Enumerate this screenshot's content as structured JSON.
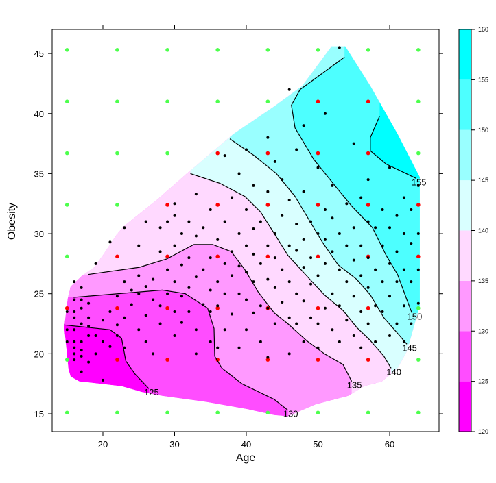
{
  "chart_data": {
    "type": "heatmap",
    "subtype": "filled-contour (levelplot) with scatter overlay",
    "title": "",
    "xlabel": "Age",
    "ylabel": "Obesity",
    "xlim": [
      12.9,
      66.9
    ],
    "ylim": [
      13.5,
      47.0
    ],
    "xticks": [
      20,
      30,
      40,
      50,
      60
    ],
    "yticks": [
      15,
      20,
      25,
      30,
      35,
      40,
      45
    ],
    "colorbar": {
      "levels": [
        120,
        125,
        130,
        135,
        140,
        145,
        150,
        155,
        160
      ],
      "tick_labels": [
        "120",
        "125",
        "130",
        "135",
        "140",
        "145",
        "150",
        "155",
        "160"
      ],
      "colors": [
        "#ff00ff",
        "#ff4dff",
        "#ff99ff",
        "#ffd9ff",
        "#d9ffff",
        "#99ffff",
        "#4dffff",
        "#00ffff"
      ]
    },
    "region_hull": [
      [
        51.9,
        45.6
      ],
      [
        53.8,
        45.6
      ],
      [
        57.3,
        42.3
      ],
      [
        61.1,
        38.3
      ],
      [
        64.2,
        34.7
      ],
      [
        64.2,
        24.0
      ],
      [
        63.3,
        22.1
      ],
      [
        62.4,
        20.2
      ],
      [
        61.1,
        18.8
      ],
      [
        58.9,
        17.7
      ],
      [
        56.4,
        17.3
      ],
      [
        54.2,
        16.5
      ],
      [
        49.7,
        15.8
      ],
      [
        45.8,
        14.8
      ],
      [
        43.9,
        14.9
      ],
      [
        40.1,
        15.4
      ],
      [
        34.4,
        16.0
      ],
      [
        28.3,
        16.5
      ],
      [
        25.5,
        16.8
      ],
      [
        22.6,
        17.3
      ],
      [
        19.7,
        17.5
      ],
      [
        16.7,
        17.7
      ],
      [
        15.5,
        18.1
      ],
      [
        15.2,
        18.7
      ],
      [
        14.6,
        22.2
      ],
      [
        15.1,
        24.6
      ],
      [
        15.5,
        25.6
      ],
      [
        17.1,
        26.5
      ],
      [
        18.8,
        27.2
      ],
      [
        20.0,
        28.2
      ],
      [
        21.9,
        29.9
      ],
      [
        22.9,
        30.6
      ],
      [
        27.7,
        32.9
      ],
      [
        31.5,
        34.9
      ],
      [
        38.2,
        38.3
      ],
      [
        43.9,
        40.6
      ],
      [
        47.8,
        42.3
      ]
    ],
    "contours": [
      {
        "level": 125,
        "label": "125",
        "points": [
          [
            14.6,
            22.4
          ],
          [
            21.0,
            22.0
          ],
          [
            22.6,
            21.3
          ],
          [
            23.2,
            19.4
          ],
          [
            24.5,
            18.3
          ],
          [
            26.4,
            17.1
          ]
        ]
      },
      {
        "level": 130,
        "label": "130",
        "points": [
          [
            15.9,
            24.7
          ],
          [
            28.3,
            25.3
          ],
          [
            31.5,
            25.0
          ],
          [
            34.6,
            23.8
          ],
          [
            35.5,
            22.1
          ],
          [
            35.6,
            19.8
          ],
          [
            36.6,
            18.8
          ],
          [
            39.4,
            17.5
          ],
          [
            43.9,
            16.2
          ],
          [
            45.8,
            15.3
          ]
        ]
      },
      {
        "level": 135,
        "label": "135",
        "points": [
          [
            17.9,
            26.6
          ],
          [
            25.1,
            27.2
          ],
          [
            28.9,
            27.9
          ],
          [
            32.7,
            29.1
          ],
          [
            35.3,
            29.1
          ],
          [
            37.9,
            28.5
          ],
          [
            39.8,
            27.0
          ],
          [
            41.7,
            25.1
          ],
          [
            43.9,
            23.4
          ],
          [
            45.8,
            22.5
          ],
          [
            48.4,
            21.1
          ],
          [
            50.9,
            20.0
          ],
          [
            53.5,
            19.1
          ],
          [
            54.7,
            17.7
          ]
        ]
      },
      {
        "level": 140,
        "label": "140",
        "points": [
          [
            32.2,
            35.0
          ],
          [
            36.3,
            34.2
          ],
          [
            39.8,
            33.1
          ],
          [
            42.0,
            31.8
          ],
          [
            43.6,
            30.3
          ],
          [
            45.8,
            28.2
          ],
          [
            48.4,
            26.5
          ],
          [
            50.9,
            24.9
          ],
          [
            53.5,
            23.6
          ],
          [
            55.4,
            22.2
          ],
          [
            57.3,
            21.1
          ],
          [
            59.2,
            19.8
          ],
          [
            60.2,
            18.8
          ]
        ]
      },
      {
        "level": 145,
        "label": "145",
        "points": [
          [
            37.7,
            37.9
          ],
          [
            41.1,
            36.5
          ],
          [
            44.2,
            35.0
          ],
          [
            46.8,
            33.1
          ],
          [
            48.7,
            31.2
          ],
          [
            50.6,
            29.3
          ],
          [
            52.8,
            27.4
          ],
          [
            55.4,
            26.2
          ],
          [
            57.3,
            24.9
          ],
          [
            59.2,
            23.0
          ],
          [
            61.1,
            21.7
          ],
          [
            62.4,
            20.8
          ]
        ]
      },
      {
        "level": 150,
        "label": "150",
        "points": [
          [
            53.7,
            44.7
          ],
          [
            47.5,
            42.0
          ],
          [
            46.3,
            40.7
          ],
          [
            46.8,
            38.8
          ],
          [
            49.4,
            36.2
          ],
          [
            52.5,
            33.9
          ],
          [
            54.7,
            32.3
          ],
          [
            57.6,
            30.5
          ],
          [
            59.5,
            28.2
          ],
          [
            61.1,
            26.6
          ],
          [
            62.4,
            24.5
          ],
          [
            63.1,
            23.4
          ]
        ]
      },
      {
        "level": 155,
        "label": "155",
        "points": [
          [
            58.6,
            39.8
          ],
          [
            57.3,
            38.0
          ],
          [
            57.3,
            36.9
          ],
          [
            59.5,
            35.8
          ],
          [
            63.7,
            34.6
          ]
        ]
      }
    ],
    "grid": {
      "ages": [
        15,
        22,
        29,
        36,
        43,
        50,
        57,
        64
      ],
      "obesity": [
        45.3,
        41.0,
        36.7,
        32.4,
        28.1,
        23.8,
        19.5,
        15.1
      ],
      "inside": [
        [
          0,
          0,
          0,
          0,
          0,
          0,
          0,
          0
        ],
        [
          0,
          0,
          0,
          0,
          0,
          1,
          1,
          0
        ],
        [
          0,
          0,
          0,
          1,
          1,
          1,
          1,
          0
        ],
        [
          0,
          0,
          1,
          1,
          1,
          1,
          1,
          1
        ],
        [
          0,
          1,
          1,
          1,
          1,
          1,
          1,
          1
        ],
        [
          1,
          1,
          1,
          1,
          1,
          1,
          1,
          0
        ],
        [
          0,
          1,
          1,
          1,
          1,
          1,
          1,
          0
        ],
        [
          0,
          0,
          0,
          0,
          0,
          0,
          0,
          0
        ]
      ],
      "inside_color": "#ff0000",
      "outside_color": "#4dff4d"
    },
    "points": [
      [
        15,
        21
      ],
      [
        15,
        22
      ],
      [
        15,
        23.5
      ],
      [
        16,
        19.5
      ],
      [
        16,
        20
      ],
      [
        16,
        20.5
      ],
      [
        16,
        21
      ],
      [
        16,
        22
      ],
      [
        16,
        23
      ],
      [
        16,
        23.5
      ],
      [
        16,
        24.5
      ],
      [
        16,
        26
      ],
      [
        17,
        18.5
      ],
      [
        17,
        19.8
      ],
      [
        17,
        20.3
      ],
      [
        17,
        21
      ],
      [
        17,
        22.5
      ],
      [
        17,
        23.8
      ],
      [
        17,
        24.5
      ],
      [
        17,
        25.5
      ],
      [
        18,
        19.3
      ],
      [
        18,
        21.5
      ],
      [
        18,
        22.3
      ],
      [
        18,
        23
      ],
      [
        18,
        24.2
      ],
      [
        19,
        20
      ],
      [
        19,
        21.5
      ],
      [
        19,
        27.5
      ],
      [
        20,
        17.8
      ],
      [
        20,
        21
      ],
      [
        20,
        22.8
      ],
      [
        21,
        20.6
      ],
      [
        21,
        23.5
      ],
      [
        21,
        29.3
      ],
      [
        22,
        22.4
      ],
      [
        22,
        21.5
      ],
      [
        22,
        24.8
      ],
      [
        23,
        20.5
      ],
      [
        23,
        23
      ],
      [
        23,
        26
      ],
      [
        23,
        30.5
      ],
      [
        24,
        25.3
      ],
      [
        24,
        24.1
      ],
      [
        25,
        22
      ],
      [
        25,
        25
      ],
      [
        25,
        26.5
      ],
      [
        25,
        29
      ],
      [
        26,
        21
      ],
      [
        26,
        23.2
      ],
      [
        26,
        25.6
      ],
      [
        26,
        31
      ],
      [
        27,
        20
      ],
      [
        27,
        24.5
      ],
      [
        27,
        26.2
      ],
      [
        28,
        22.5
      ],
      [
        28,
        24
      ],
      [
        28,
        28.5
      ],
      [
        28,
        30.5
      ],
      [
        29,
        25
      ],
      [
        29,
        27
      ],
      [
        29,
        31
      ],
      [
        30,
        21.5
      ],
      [
        30,
        23.5
      ],
      [
        30,
        26
      ],
      [
        30,
        29
      ],
      [
        30,
        31.5
      ],
      [
        30,
        32.5
      ],
      [
        31,
        22.6
      ],
      [
        31,
        24.8
      ],
      [
        31,
        27.4
      ],
      [
        31,
        30
      ],
      [
        32,
        23.5
      ],
      [
        32,
        25.5
      ],
      [
        32,
        28
      ],
      [
        32,
        31
      ],
      [
        33,
        20
      ],
      [
        33,
        22
      ],
      [
        33,
        26.4
      ],
      [
        33,
        29.8
      ],
      [
        33,
        33.3
      ],
      [
        34,
        24.1
      ],
      [
        34,
        27
      ],
      [
        34,
        30.5
      ],
      [
        35,
        21
      ],
      [
        35,
        23.5
      ],
      [
        35,
        25.3
      ],
      [
        35,
        28
      ],
      [
        35,
        32
      ],
      [
        36,
        20.5
      ],
      [
        36,
        24
      ],
      [
        36,
        26
      ],
      [
        36,
        29.5
      ],
      [
        37,
        22
      ],
      [
        37,
        25
      ],
      [
        37,
        27.5
      ],
      [
        37,
        31
      ],
      [
        37,
        36.5
      ],
      [
        38,
        23.3
      ],
      [
        38,
        26.5
      ],
      [
        38,
        28.5
      ],
      [
        38,
        33
      ],
      [
        39,
        20.5
      ],
      [
        39,
        25
      ],
      [
        39,
        27.3
      ],
      [
        39,
        30
      ],
      [
        39,
        35
      ],
      [
        40,
        22
      ],
      [
        40,
        24.5
      ],
      [
        40,
        26.8
      ],
      [
        40,
        29
      ],
      [
        40,
        32
      ],
      [
        40,
        37
      ],
      [
        41,
        23.4
      ],
      [
        41,
        26
      ],
      [
        41,
        28.3
      ],
      [
        41,
        30.4
      ],
      [
        41,
        34
      ],
      [
        42,
        21
      ],
      [
        42,
        24
      ],
      [
        42,
        27.5
      ],
      [
        42,
        31
      ],
      [
        43,
        19.7
      ],
      [
        43,
        23.8
      ],
      [
        43,
        26.2
      ],
      [
        43,
        29
      ],
      [
        43,
        33.5
      ],
      [
        43,
        38
      ],
      [
        44,
        22.5
      ],
      [
        44,
        25.5
      ],
      [
        44,
        28
      ],
      [
        44,
        30
      ],
      [
        44,
        36
      ],
      [
        45,
        24.3
      ],
      [
        45,
        27
      ],
      [
        45,
        31.5
      ],
      [
        45,
        34.5
      ],
      [
        46,
        20
      ],
      [
        46,
        23
      ],
      [
        46,
        26
      ],
      [
        46,
        29
      ],
      [
        46,
        32.8
      ],
      [
        46,
        42
      ],
      [
        47,
        22.5
      ],
      [
        47,
        25
      ],
      [
        47,
        28.6
      ],
      [
        47,
        30.8
      ],
      [
        47,
        37
      ],
      [
        48,
        21
      ],
      [
        48,
        24.4
      ],
      [
        48,
        27.2
      ],
      [
        48,
        29.5
      ],
      [
        48,
        33.5
      ],
      [
        48,
        39
      ],
      [
        49,
        23
      ],
      [
        49,
        25.8
      ],
      [
        49,
        28
      ],
      [
        49,
        31
      ],
      [
        50,
        20.5
      ],
      [
        50,
        22.5
      ],
      [
        50,
        26.5
      ],
      [
        50,
        30
      ],
      [
        50,
        35.5
      ],
      [
        51,
        23.8
      ],
      [
        51,
        27.5
      ],
      [
        51,
        29.5
      ],
      [
        51,
        32
      ],
      [
        51,
        40
      ],
      [
        52,
        22
      ],
      [
        52,
        25
      ],
      [
        52,
        28.5
      ],
      [
        52,
        31.3
      ],
      [
        52,
        34
      ],
      [
        53,
        21
      ],
      [
        53,
        24
      ],
      [
        53,
        27
      ],
      [
        53,
        30
      ],
      [
        53,
        45.5
      ],
      [
        54,
        22.8
      ],
      [
        54,
        26
      ],
      [
        54,
        29
      ],
      [
        54,
        32.5
      ],
      [
        55,
        21.5
      ],
      [
        55,
        24.8
      ],
      [
        55,
        27.8
      ],
      [
        55,
        30.5
      ],
      [
        55,
        37.5
      ],
      [
        56,
        20.5
      ],
      [
        56,
        23.5
      ],
      [
        56,
        26.5
      ],
      [
        56,
        29
      ],
      [
        56,
        33
      ],
      [
        57,
        22.5
      ],
      [
        57,
        25.5
      ],
      [
        57,
        28
      ],
      [
        57,
        31
      ],
      [
        57,
        34.5
      ],
      [
        58,
        21
      ],
      [
        58,
        24
      ],
      [
        58,
        27
      ],
      [
        58,
        30.5
      ],
      [
        59,
        23.5
      ],
      [
        59,
        26
      ],
      [
        59,
        29
      ],
      [
        59,
        32
      ],
      [
        60,
        21.5
      ],
      [
        60,
        24.8
      ],
      [
        60,
        27.5
      ],
      [
        60,
        30.5
      ],
      [
        60,
        35.5
      ],
      [
        61,
        22.5
      ],
      [
        61,
        26
      ],
      [
        61,
        28.5
      ],
      [
        61,
        31.5
      ],
      [
        62,
        21
      ],
      [
        62,
        24
      ],
      [
        62,
        27
      ],
      [
        62,
        30
      ],
      [
        62,
        33
      ],
      [
        63,
        22.5
      ],
      [
        63,
        26
      ],
      [
        63,
        29.2
      ],
      [
        63,
        32
      ],
      [
        64,
        24.2
      ],
      [
        64,
        27
      ],
      [
        64,
        30
      ],
      [
        64,
        34
      ]
    ]
  }
}
